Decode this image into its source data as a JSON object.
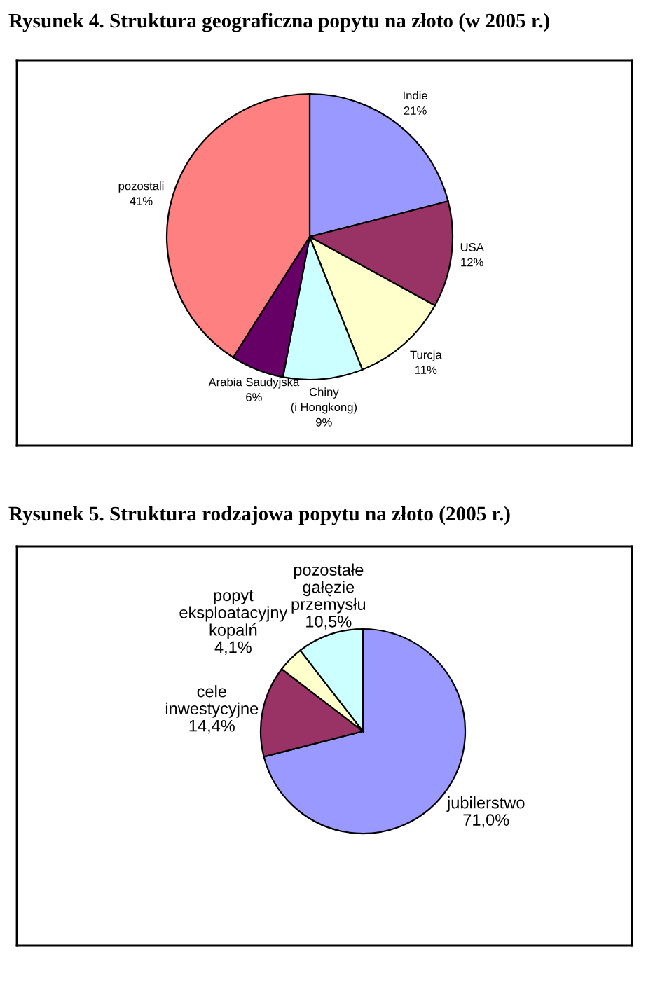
{
  "chart_data": [
    {
      "type": "pie",
      "title": "Rysunek 4. Struktura geograficzna popytu na złoto (w 2005 r.)",
      "categories": [
        "Indie",
        "USA",
        "Turcja",
        "Chiny\n(i Hongkong)",
        "Arabia Saudyjska",
        "pozostali"
      ],
      "values": [
        21,
        12,
        11,
        9,
        6,
        41
      ],
      "value_labels": [
        "21%",
        "12%",
        "11%",
        "9%",
        "6%",
        "41%"
      ],
      "colors": [
        "#9999ff",
        "#993366",
        "#ffffcc",
        "#ccffff",
        "#660066",
        "#ff8080"
      ],
      "legend": false
    },
    {
      "type": "pie",
      "title": "Rysunek 5. Struktura rodzajowa popytu na złoto (2005 r.)",
      "categories": [
        "jubilerstwo",
        "cele\ninwestycyjne",
        "popyt\neksploatacyjny\nkopalń",
        "pozostałe\ngałęzie\nprzemysłu"
      ],
      "values": [
        71.0,
        14.4,
        4.1,
        10.5
      ],
      "value_labels": [
        "71,0%",
        "14,4%",
        "4,1%",
        "10,5%"
      ],
      "colors": [
        "#9999ff",
        "#993366",
        "#ffffcc",
        "#ccffff"
      ],
      "legend": false
    }
  ]
}
